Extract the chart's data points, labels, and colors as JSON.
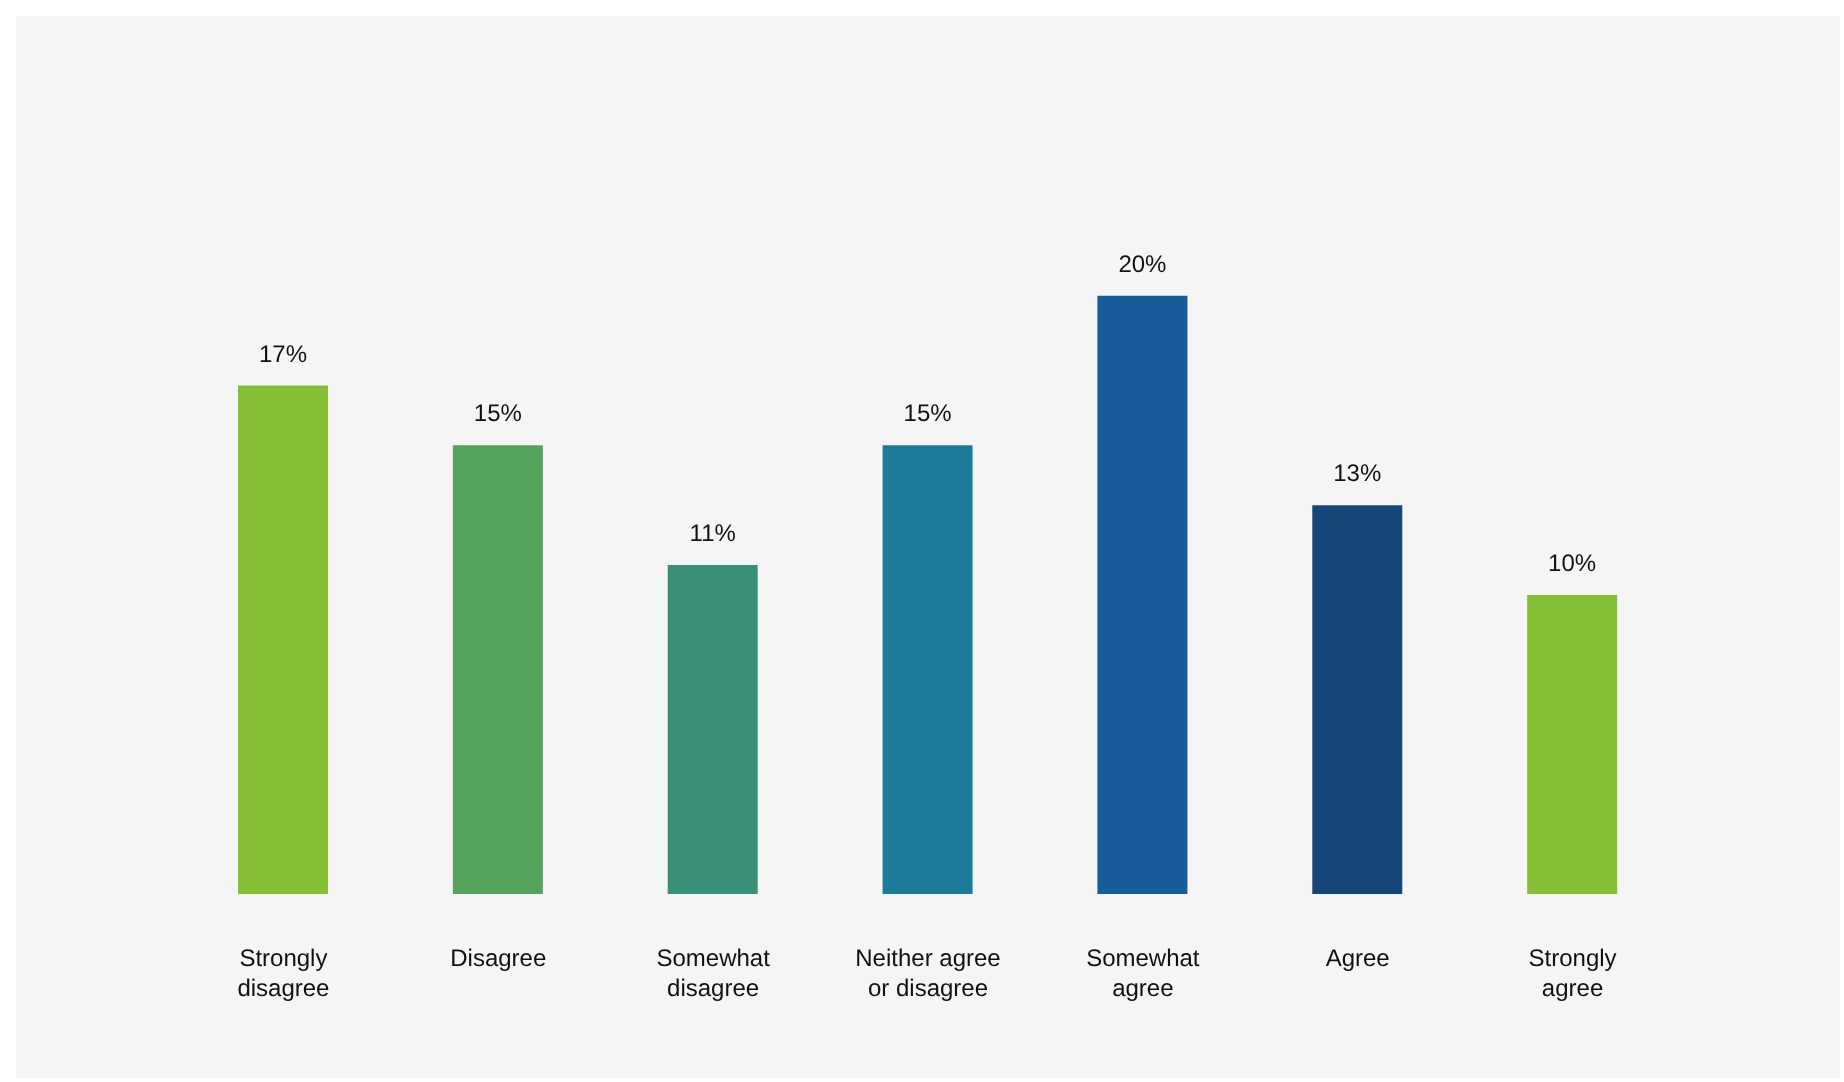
{
  "chart_data": {
    "type": "bar",
    "categories": [
      "Strongly disagree",
      "Disagree",
      "Somewhat disagree",
      "Neither agree or disagree",
      "Somewhat agree",
      "Agree",
      "Strongly agree"
    ],
    "values": [
      17,
      15,
      11,
      15,
      20,
      13,
      10
    ],
    "colors": [
      "#84bf36",
      "#55a35c",
      "#3a8f78",
      "#1d7a98",
      "#185c9a",
      "#154677",
      "#84bf36"
    ],
    "value_labels": [
      "17%",
      "15%",
      "11%",
      "15%",
      "20%",
      "13%",
      "10%"
    ],
    "grid": false,
    "legend": false
  }
}
